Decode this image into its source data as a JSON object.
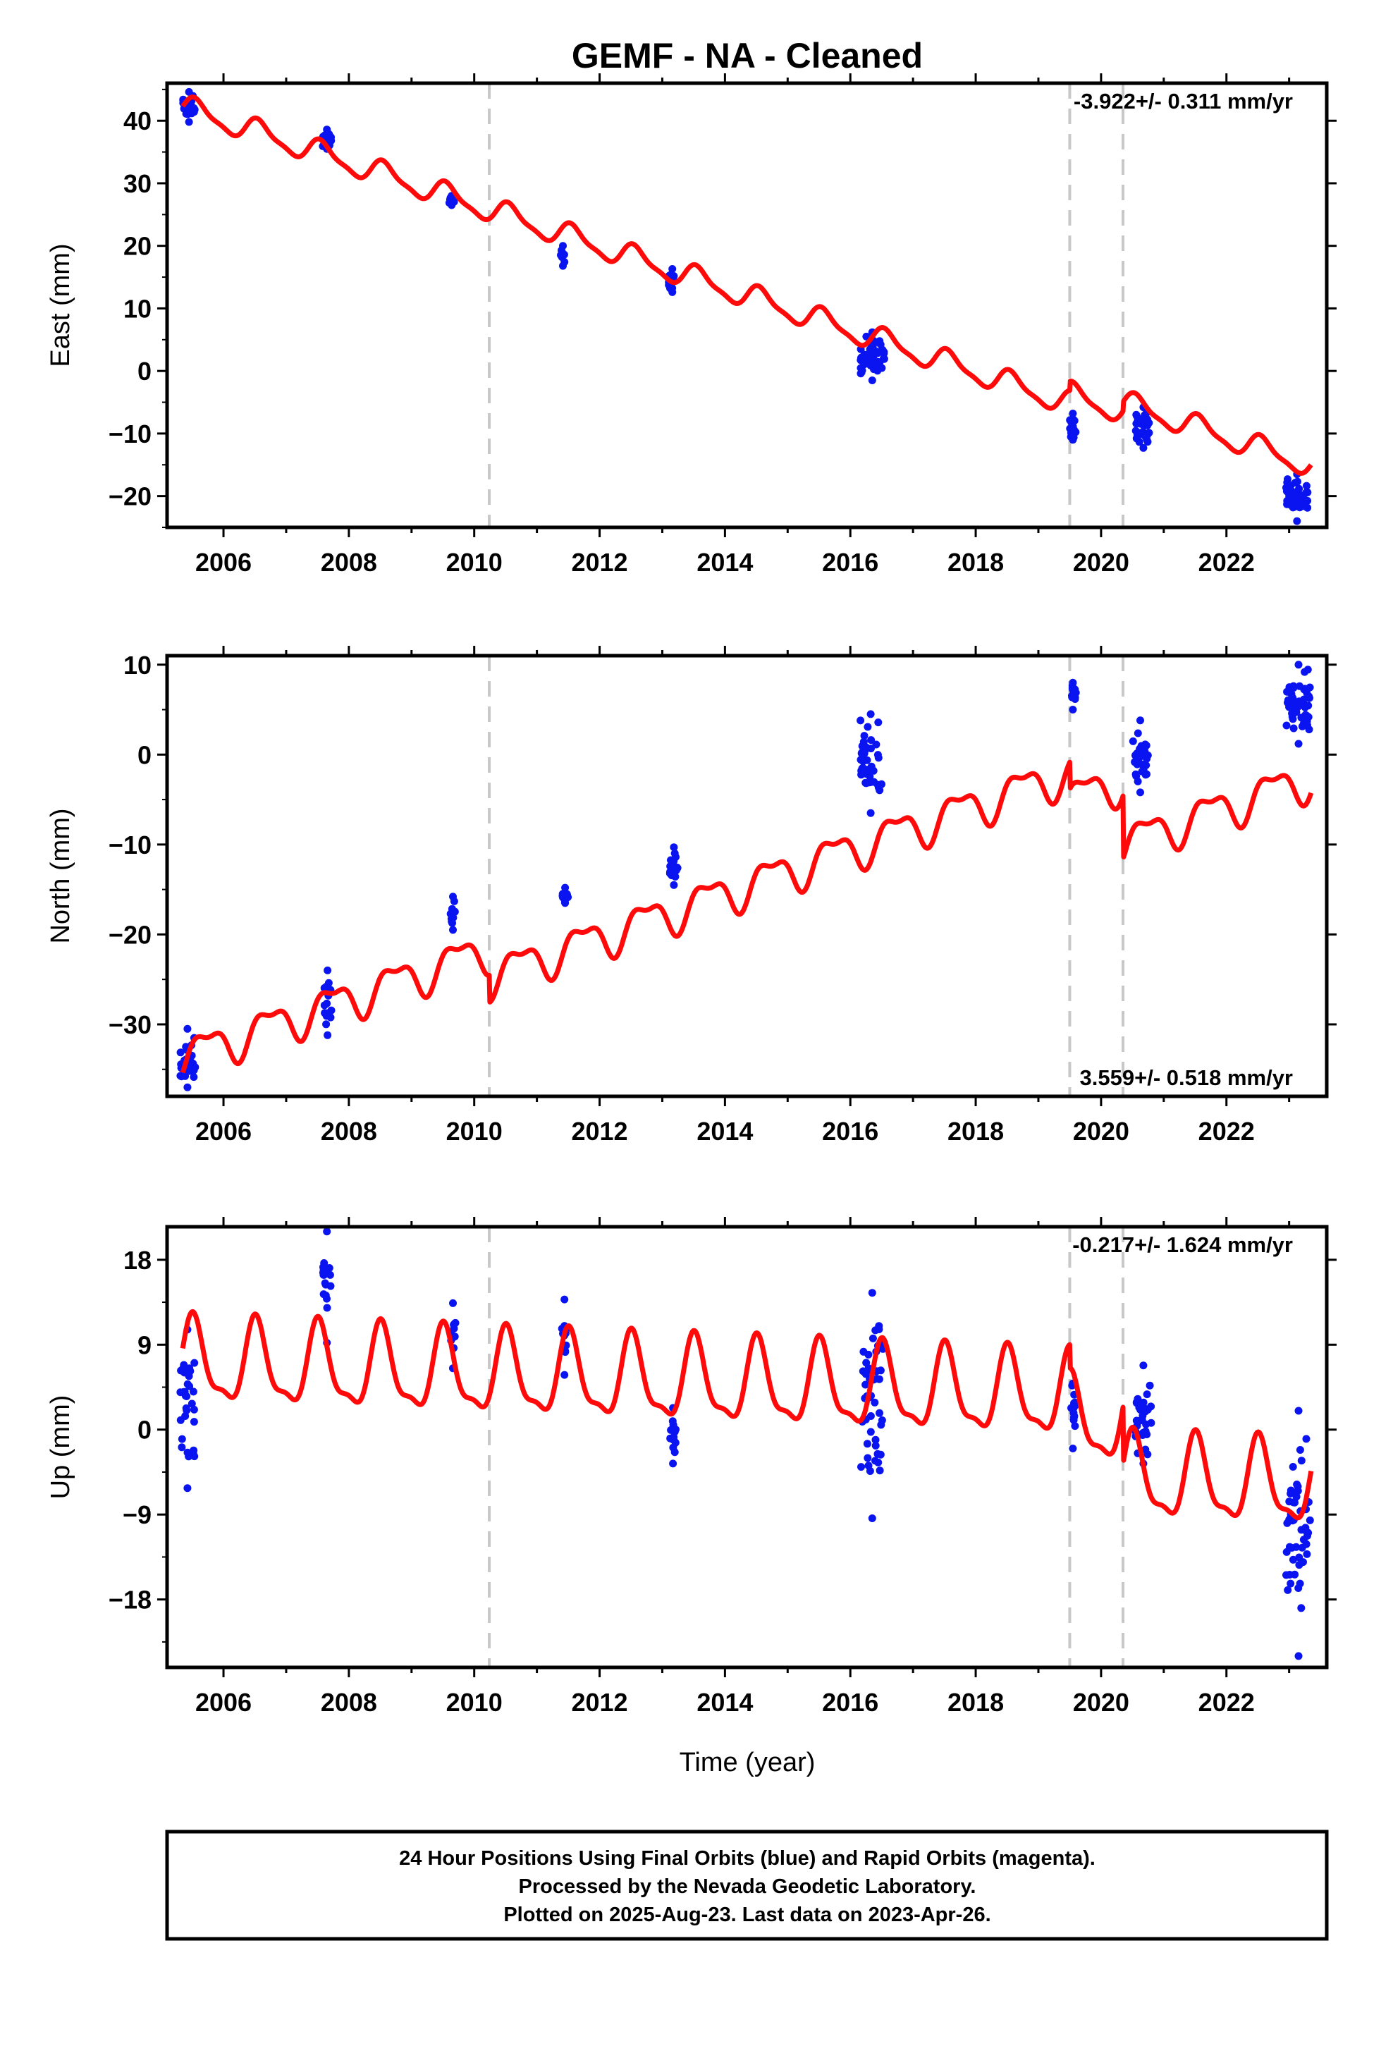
{
  "page": {
    "title": "GEMF  - NA - Cleaned",
    "xlabel": "Time (year)",
    "footer": [
      "24 Hour Positions Using Final Orbits (blue) and Rapid Orbits (magenta).",
      "Processed by the Nevada Geodetic Laboratory.",
      "Plotted on 2025-Aug-23. Last data on 2023-Apr-26."
    ]
  },
  "colors": {
    "data": "#0a14f0",
    "model": "#ff0a0a",
    "breaks": "#c8c8c8",
    "frame": "#000000"
  },
  "chart_data": [
    {
      "type": "scatter",
      "component": "east",
      "ylabel": "East (mm)",
      "rate_label": "-3.922+/- 0.311 mm/yr",
      "xlim": [
        2005.1,
        2023.6
      ],
      "ylim": [
        -25,
        46
      ],
      "yticks": [
        40,
        30,
        20,
        10,
        0,
        -10,
        -20
      ],
      "yticklabels": [
        "40",
        "30",
        "20",
        "10",
        "0",
        "−10",
        "−20"
      ],
      "xticks": [
        2006,
        2008,
        2010,
        2012,
        2014,
        2016,
        2018,
        2020,
        2022
      ],
      "break_lines": [
        2010.24,
        2019.5,
        2020.35
      ],
      "observation_groups": [
        {
          "x": [
            2005.35,
            2005.55
          ],
          "y": [
            39.8,
            44.6
          ]
        },
        {
          "x": [
            2007.58,
            2007.72
          ],
          "y": [
            35.5,
            38.6
          ]
        },
        {
          "x": [
            2009.6,
            2009.68
          ],
          "y": [
            26.5,
            28.0
          ]
        },
        {
          "x": [
            2011.38,
            2011.45
          ],
          "y": [
            16.8,
            20.0
          ]
        },
        {
          "x": [
            2013.1,
            2013.22
          ],
          "y": [
            12.6,
            16.3
          ]
        },
        {
          "x": [
            2016.15,
            2016.55
          ],
          "y": [
            -1.5,
            6.2
          ]
        },
        {
          "x": [
            2019.5,
            2019.6
          ],
          "y": [
            -11.0,
            -6.8
          ]
        },
        {
          "x": [
            2020.55,
            2020.8
          ],
          "y": [
            -12.3,
            -5.8
          ]
        },
        {
          "x": [
            2022.95,
            2023.3
          ],
          "y": [
            -24.0,
            -16.5
          ]
        }
      ],
      "model": {
        "a0": 42,
        "t0": 2005.4,
        "rate": -3.35,
        "sin": 1.6,
        "cos": 0.8,
        "sin2": 0.5,
        "cos2": 0.2,
        "offsets": [
          [
            2019.5,
            1.5
          ],
          [
            2020.35,
            1.5
          ]
        ]
      }
    },
    {
      "type": "scatter",
      "component": "north",
      "ylabel": "North (mm)",
      "rate_label": "3.559+/- 0.518 mm/yr",
      "xlim": [
        2005.1,
        2023.6
      ],
      "ylim": [
        -38,
        11
      ],
      "yticks": [
        10,
        0,
        -10,
        -20,
        -30
      ],
      "yticklabels": [
        "10",
        "0",
        "−10",
        "−20",
        "−30"
      ],
      "xticks": [
        2006,
        2008,
        2010,
        2012,
        2014,
        2016,
        2018,
        2020,
        2022
      ],
      "break_lines": [
        2010.24,
        2019.5,
        2020.35
      ],
      "observation_groups": [
        {
          "x": [
            2005.3,
            2005.55
          ],
          "y": [
            -37.0,
            -30.5
          ]
        },
        {
          "x": [
            2007.6,
            2007.72
          ],
          "y": [
            -31.2,
            -24.0
          ]
        },
        {
          "x": [
            2009.62,
            2009.7
          ],
          "y": [
            -19.5,
            -15.8
          ]
        },
        {
          "x": [
            2011.4,
            2011.5
          ],
          "y": [
            -16.5,
            -14.8
          ]
        },
        {
          "x": [
            2013.12,
            2013.25
          ],
          "y": [
            -14.5,
            -10.3
          ]
        },
        {
          "x": [
            2016.15,
            2016.5
          ],
          "y": [
            -6.5,
            4.5
          ]
        },
        {
          "x": [
            2019.5,
            2019.6
          ],
          "y": [
            5.0,
            8.0
          ]
        },
        {
          "x": [
            2020.5,
            2020.75
          ],
          "y": [
            -4.2,
            3.8
          ]
        },
        {
          "x": [
            2022.95,
            2023.35
          ],
          "y": [
            1.2,
            10.0
          ]
        }
      ],
      "model": {
        "a0": -33.5,
        "t0": 2005.4,
        "rate": 2.45,
        "sin": 1.8,
        "cos": -1.0,
        "sin2": 0.8,
        "cos2": 0.3,
        "offsets": [
          [
            2010.24,
            -3.0
          ],
          [
            2019.5,
            -3.0
          ],
          [
            2020.35,
            -7.0
          ]
        ]
      }
    },
    {
      "type": "scatter",
      "component": "up",
      "ylabel": "Up (mm)",
      "rate_label": "-0.217+/- 1.624 mm/yr",
      "xlim": [
        2005.1,
        2023.6
      ],
      "ylim": [
        -25.2,
        21.5
      ],
      "yticks": [
        18,
        9,
        0,
        -9,
        -18
      ],
      "yticklabels": [
        "18",
        "9",
        "0",
        "−9",
        "−18"
      ],
      "xticks": [
        2006,
        2008,
        2010,
        2012,
        2014,
        2016,
        2018,
        2020,
        2022
      ],
      "break_lines": [
        2010.24,
        2019.5,
        2020.35
      ],
      "observation_groups": [
        {
          "x": [
            2005.3,
            2005.55
          ],
          "y": [
            -6.2,
            10.6
          ]
        },
        {
          "x": [
            2007.58,
            2007.72
          ],
          "y": [
            9.2,
            21.0
          ]
        },
        {
          "x": [
            2009.62,
            2009.7
          ],
          "y": [
            6.5,
            13.4
          ]
        },
        {
          "x": [
            2011.4,
            2011.48
          ],
          "y": [
            5.8,
            13.8
          ]
        },
        {
          "x": [
            2013.12,
            2013.22
          ],
          "y": [
            -3.6,
            2.3
          ]
        },
        {
          "x": [
            2016.15,
            2016.55
          ],
          "y": [
            -9.4,
            14.5
          ]
        },
        {
          "x": [
            2019.5,
            2019.6
          ],
          "y": [
            -2.0,
            4.9
          ]
        },
        {
          "x": [
            2020.55,
            2020.8
          ],
          "y": [
            -3.6,
            6.8
          ]
        },
        {
          "x": [
            2022.95,
            2023.35
          ],
          "y": [
            -24.0,
            2.0
          ]
        }
      ],
      "model": {
        "a0": 7.0,
        "t0": 2005.4,
        "rate": -0.25,
        "sin": 2.9,
        "cos": 3.0,
        "sin2": 1.3,
        "cos2": 0.5,
        "offsets": [
          [
            2019.5,
            -2.5
          ],
          [
            2020.35,
            -6.0
          ]
        ]
      }
    }
  ]
}
